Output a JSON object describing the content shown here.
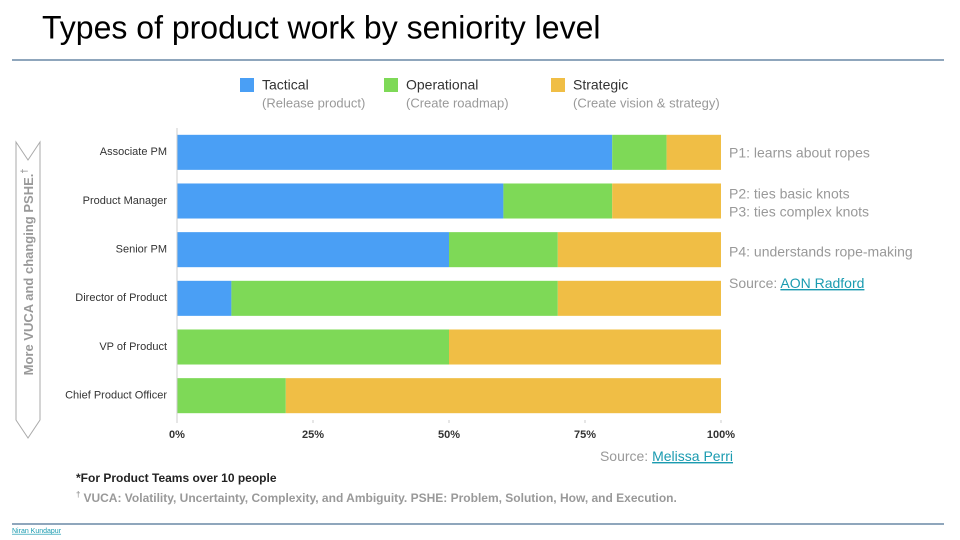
{
  "title": "Types of product work by seniority level",
  "side_arrow": {
    "text": "More VUCA and changing PSHE.",
    "mark": "†"
  },
  "chart_data": {
    "type": "stacked-barh",
    "categories": [
      "Associate PM",
      "Product Manager",
      "Senior PM",
      "Director of Product",
      "VP of Product",
      "Chief Product Officer"
    ],
    "series": [
      {
        "name": "Tactical",
        "description": "(Release product)",
        "color": "#4a9ff5",
        "values": [
          80,
          60,
          50,
          10,
          0,
          0
        ]
      },
      {
        "name": "Operational",
        "description": "(Create roadmap)",
        "color": "#7ed957",
        "values": [
          10,
          20,
          20,
          60,
          50,
          20
        ]
      },
      {
        "name": "Strategic",
        "description": "(Create vision & strategy)",
        "color": "#f0be45",
        "values": [
          10,
          20,
          30,
          30,
          50,
          80
        ]
      }
    ],
    "xlim": [
      0,
      100
    ],
    "xticks": [
      {
        "value": 0,
        "label": "0%"
      },
      {
        "value": 25,
        "label": "25%"
      },
      {
        "value": 50,
        "label": "50%"
      },
      {
        "value": 75,
        "label": "75%"
      },
      {
        "value": 100,
        "label": "100%"
      }
    ],
    "legend": "top"
  },
  "annotations": [
    "P1: learns about ropes",
    "P2: ties basic knots",
    "P3: ties complex knots",
    "P4: understands rope-making"
  ],
  "sources": [
    {
      "label": "Source:",
      "link": "AON Radford"
    },
    {
      "label": "Source:",
      "link": "Melissa Perri"
    }
  ],
  "footnotes": {
    "note": "*For Product Teams over 10 people",
    "mark": "†",
    "text": "VUCA: Volatility, Uncertainty, Complexity, and Ambiguity.  PSHE: Problem, Solution, How, and Execution."
  },
  "footer": "Niran Kundapur"
}
